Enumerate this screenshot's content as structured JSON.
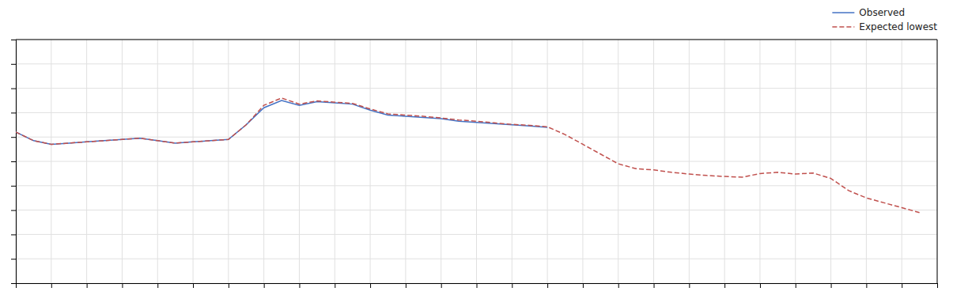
{
  "chart_data": {
    "type": "line",
    "xlim": [
      0,
      52
    ],
    "ylim": [
      0,
      10
    ],
    "xticks": [
      0,
      2,
      4,
      6,
      8,
      10,
      12,
      14,
      16,
      18,
      20,
      22,
      24,
      26,
      28,
      30,
      32,
      34,
      36,
      38,
      40,
      42,
      44,
      46,
      48,
      50,
      52
    ],
    "yticks": [
      0,
      1,
      2,
      3,
      4,
      5,
      6,
      7,
      8,
      9,
      10
    ],
    "grid": true,
    "tick_labels": false,
    "legend": "upper right",
    "series": [
      {
        "name": "Observed",
        "color": "#4472c4",
        "line_style": "solid",
        "x": [
          0,
          1,
          2,
          3,
          4,
          5,
          6,
          7,
          8,
          9,
          10,
          11,
          12,
          13,
          14,
          15,
          16,
          17,
          18,
          19,
          20,
          21,
          22,
          23,
          24,
          25,
          26,
          27,
          28,
          29,
          30
        ],
        "values": [
          6.2,
          5.85,
          5.7,
          5.75,
          5.8,
          5.85,
          5.9,
          5.95,
          5.85,
          5.75,
          5.8,
          5.85,
          5.9,
          6.5,
          7.2,
          7.5,
          7.3,
          7.45,
          7.4,
          7.35,
          7.1,
          6.9,
          6.85,
          6.8,
          6.75,
          6.65,
          6.6,
          6.55,
          6.5,
          6.45,
          6.4
        ]
      },
      {
        "name": "Expected lowest",
        "color": "#c0504d",
        "line_style": "dashed",
        "x": [
          0,
          1,
          2,
          3,
          4,
          5,
          6,
          7,
          8,
          9,
          10,
          11,
          12,
          13,
          14,
          15,
          16,
          17,
          18,
          19,
          20,
          21,
          22,
          23,
          24,
          25,
          26,
          27,
          28,
          29,
          30,
          31,
          32,
          33,
          34,
          35,
          36,
          37,
          38,
          39,
          40,
          41,
          42,
          43,
          44,
          45,
          46,
          47,
          48,
          49,
          50,
          51
        ],
        "values": [
          6.2,
          5.85,
          5.7,
          5.75,
          5.8,
          5.85,
          5.9,
          5.95,
          5.85,
          5.75,
          5.8,
          5.85,
          5.9,
          6.5,
          7.3,
          7.6,
          7.35,
          7.48,
          7.43,
          7.38,
          7.15,
          6.95,
          6.9,
          6.85,
          6.78,
          6.7,
          6.65,
          6.58,
          6.52,
          6.48,
          6.42,
          6.1,
          5.7,
          5.3,
          4.9,
          4.7,
          4.65,
          4.55,
          4.48,
          4.42,
          4.38,
          4.35,
          4.5,
          4.55,
          4.48,
          4.52,
          4.3,
          3.8,
          3.5,
          3.3,
          3.1,
          2.9
        ]
      }
    ]
  }
}
